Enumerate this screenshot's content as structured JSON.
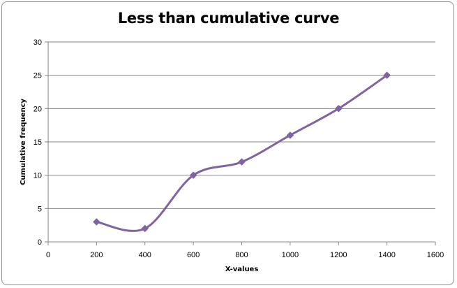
{
  "chart_data": {
    "type": "line",
    "title": "Less than cumulative curve",
    "xlabel": "X-values",
    "ylabel": "Cumulative frequency",
    "xlim": [
      0,
      1600
    ],
    "ylim": [
      0,
      30
    ],
    "xticks": [
      0,
      200,
      400,
      600,
      800,
      1000,
      1200,
      1400,
      1600
    ],
    "yticks": [
      0,
      5,
      10,
      15,
      20,
      25,
      30
    ],
    "grid": "horizontal",
    "legend": "none",
    "smooth": true,
    "series": [
      {
        "x": [
          200,
          400,
          600,
          800,
          1000,
          1200,
          1400
        ],
        "values": [
          3,
          2,
          10,
          12,
          16,
          20,
          25
        ],
        "color": "#8064A2",
        "marker": "diamond"
      }
    ]
  },
  "colors": {
    "series": "#8064A2",
    "grid": "#868686",
    "axis": "#868686"
  }
}
